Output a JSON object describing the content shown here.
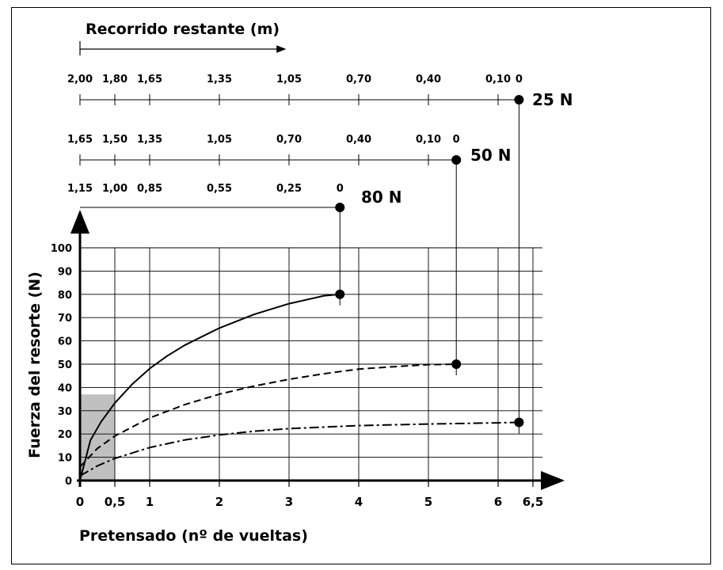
{
  "chart_data": {
    "type": "line",
    "title": "Recorrido restante (m)",
    "xlabel": "Pretensado (nº de vueltas)",
    "ylabel": "Fuerza del resorte (N)",
    "xlim": [
      0,
      6.5
    ],
    "ylim": [
      0,
      100
    ],
    "x_ticks": [
      {
        "v": 0,
        "label": "0"
      },
      {
        "v": 0.5,
        "label": "0,5"
      },
      {
        "v": 1,
        "label": "1"
      },
      {
        "v": 2,
        "label": "2"
      },
      {
        "v": 3,
        "label": "3"
      },
      {
        "v": 4,
        "label": "4"
      },
      {
        "v": 5,
        "label": "5"
      },
      {
        "v": 6,
        "label": "6"
      },
      {
        "v": 6.5,
        "label": "6,5"
      }
    ],
    "y_ticks": [
      0,
      10,
      20,
      30,
      40,
      50,
      60,
      70,
      80,
      90,
      100
    ],
    "grid": true,
    "shaded_region": {
      "x": [
        0,
        0.5
      ],
      "y": [
        0,
        37
      ],
      "color": "#c0c0c0"
    },
    "series": [
      {
        "name": "80 N",
        "style": "solid",
        "end_x": 3.73,
        "end_y": 80,
        "x": [
          0,
          0.15,
          0.3,
          0.5,
          0.75,
          1,
          1.25,
          1.5,
          2,
          2.5,
          3,
          3.5,
          3.73
        ],
        "y": [
          0,
          17.3,
          25.1,
          33.3,
          41.4,
          48.1,
          53.5,
          58.1,
          65.5,
          71.4,
          76.0,
          79.4,
          80
        ]
      },
      {
        "name": "50 N",
        "style": "dashed",
        "end_x": 5.4,
        "end_y": 50,
        "x": [
          0,
          0.25,
          0.5,
          1,
          1.5,
          2,
          2.5,
          3,
          3.5,
          4,
          4.5,
          5,
          5.4
        ],
        "y": [
          5.9,
          13.8,
          19.1,
          26.9,
          32.6,
          37.1,
          40.6,
          43.5,
          45.9,
          47.9,
          48.9,
          49.8,
          50
        ]
      },
      {
        "name": "25 N",
        "style": "dashdot",
        "end_x": 6.3,
        "end_y": 25,
        "x": [
          0,
          0.25,
          0.5,
          1,
          1.5,
          2,
          2.5,
          3,
          4,
          5,
          6,
          6.3
        ],
        "y": [
          2.0,
          6.3,
          9.5,
          14.2,
          17.4,
          19.6,
          21.2,
          22.3,
          23.6,
          24.3,
          24.8,
          25
        ]
      }
    ],
    "travel_scales": [
      {
        "label": "25 N",
        "end_x": 6.3,
        "ticks": [
          {
            "x": 0,
            "label": "2,00"
          },
          {
            "x": 0.5,
            "label": "1,80"
          },
          {
            "x": 1,
            "label": "1,65"
          },
          {
            "x": 2,
            "label": "1,35"
          },
          {
            "x": 3,
            "label": "1,05"
          },
          {
            "x": 4,
            "label": "0,70"
          },
          {
            "x": 5,
            "label": "0,40"
          },
          {
            "x": 6,
            "label": "0,10"
          },
          {
            "x": 6.3,
            "label": "0"
          }
        ]
      },
      {
        "label": "50 N",
        "end_x": 5.4,
        "ticks": [
          {
            "x": 0,
            "label": "1,65"
          },
          {
            "x": 0.5,
            "label": "1,50"
          },
          {
            "x": 1,
            "label": "1,35"
          },
          {
            "x": 2,
            "label": "1,05"
          },
          {
            "x": 3,
            "label": "0,70"
          },
          {
            "x": 4,
            "label": "0,40"
          },
          {
            "x": 5,
            "label": "0,10"
          },
          {
            "x": 5.4,
            "label": "0"
          }
        ]
      },
      {
        "label": "80 N",
        "end_x": 3.73,
        "ticks": [
          {
            "x": 0,
            "label": "1,15"
          },
          {
            "x": 0.5,
            "label": "1,00"
          },
          {
            "x": 1,
            "label": "0,85"
          },
          {
            "x": 2,
            "label": "0,55"
          },
          {
            "x": 3,
            "label": "0,25"
          },
          {
            "x": 3.73,
            "label": "0"
          }
        ]
      }
    ]
  }
}
